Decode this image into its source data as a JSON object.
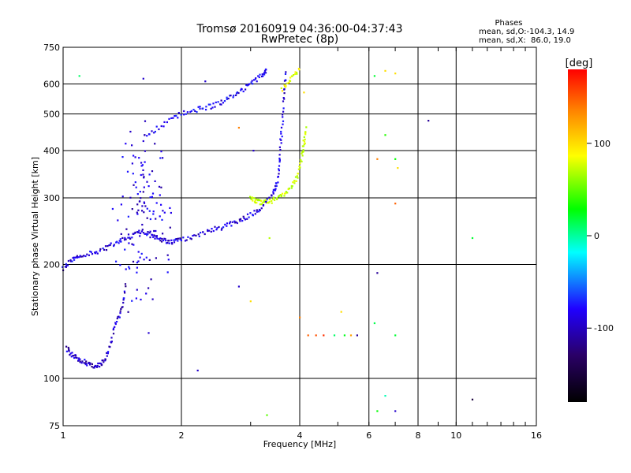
{
  "chart_data": {
    "type": "scatter",
    "title": "Tromsø 20160919 04:36:00-04:37:43",
    "subtitle": "RwPretec (8p)",
    "xlabel": "Frequency [MHz]",
    "ylabel": "Stationary phase Virtual Height [km]",
    "x_scale": "log",
    "y_scale": "log",
    "xlim": [
      1,
      16
    ],
    "ylim": [
      75,
      750
    ],
    "x_ticks": [
      1,
      2,
      4,
      6,
      8,
      10,
      16
    ],
    "x_tick_labels": [
      "1",
      "2",
      "4",
      "6",
      "8",
      "10",
      "16"
    ],
    "y_ticks": [
      75,
      100,
      200,
      300,
      400,
      500,
      600,
      750
    ],
    "y_tick_labels": [
      "75",
      "100",
      "200",
      "300",
      "400",
      "500",
      "600",
      "750"
    ],
    "grid": true,
    "phases_note": {
      "heading": "Phases",
      "line1": "mean, sd,O:-104.3, 14.9",
      "line2": "mean, sd,X:  86.0, 19.0"
    },
    "colorbar": {
      "label": "[deg]",
      "range": [
        -180,
        180
      ],
      "tick_values": [
        100,
        0,
        -100
      ],
      "tick_labels": [
        "100",
        "0",
        "-100"
      ],
      "colors": [
        "#000000",
        "#2a0066",
        "#2000ff",
        "#00ffff",
        "#00ff00",
        "#ffff00",
        "#ff8000",
        "#ff0000"
      ]
    },
    "traces": [
      {
        "kind": "O-mode lower curve",
        "phase": -105,
        "points": [
          [
            1.0,
            195
          ],
          [
            1.05,
            205
          ],
          [
            1.1,
            212
          ],
          [
            1.2,
            215
          ],
          [
            1.3,
            222
          ],
          [
            1.4,
            232
          ],
          [
            1.5,
            240
          ],
          [
            1.6,
            245
          ],
          [
            1.7,
            237
          ],
          [
            1.8,
            232
          ],
          [
            1.9,
            230
          ],
          [
            2.0,
            232
          ],
          [
            2.2,
            240
          ],
          [
            2.4,
            247
          ],
          [
            2.6,
            253
          ],
          [
            2.8,
            262
          ],
          [
            3.0,
            270
          ],
          [
            3.2,
            283
          ],
          [
            3.4,
            305
          ],
          [
            3.5,
            330
          ],
          [
            3.55,
            380
          ],
          [
            3.6,
            450
          ],
          [
            3.65,
            560
          ],
          [
            3.7,
            650
          ]
        ]
      },
      {
        "kind": "X-mode curve",
        "phase": 85,
        "points": [
          [
            3.0,
            300
          ],
          [
            3.1,
            295
          ],
          [
            3.2,
            292
          ],
          [
            3.4,
            295
          ],
          [
            3.6,
            305
          ],
          [
            3.8,
            320
          ],
          [
            3.95,
            345
          ],
          [
            4.05,
            380
          ],
          [
            4.1,
            420
          ],
          [
            4.15,
            460
          ]
        ]
      },
      {
        "kind": "upper O-mode trace",
        "phase": -100,
        "points": [
          [
            1.6,
            430
          ],
          [
            1.8,
            470
          ],
          [
            2.0,
            500
          ],
          [
            2.2,
            515
          ],
          [
            2.4,
            525
          ],
          [
            2.6,
            545
          ],
          [
            2.8,
            570
          ],
          [
            3.0,
            600
          ],
          [
            3.2,
            630
          ],
          [
            3.3,
            650
          ]
        ]
      },
      {
        "kind": "Es-like low trace",
        "phase": -110,
        "points": [
          [
            1.02,
            120
          ],
          [
            1.06,
            115
          ],
          [
            1.1,
            112
          ],
          [
            1.15,
            110
          ],
          [
            1.2,
            108
          ],
          [
            1.25,
            109
          ],
          [
            1.3,
            116
          ],
          [
            1.35,
            135
          ],
          [
            1.4,
            150
          ],
          [
            1.45,
            180
          ]
        ]
      },
      {
        "kind": "spread F cloud",
        "phase": -105,
        "points": [
          [
            1.45,
            180
          ],
          [
            1.5,
            380
          ],
          [
            1.55,
            250
          ],
          [
            1.6,
            300
          ],
          [
            1.65,
            200
          ],
          [
            1.7,
            330
          ],
          [
            1.75,
            270
          ]
        ]
      },
      {
        "kind": "X-mode upper",
        "phase": 95,
        "points": [
          [
            3.6,
            580
          ],
          [
            3.8,
            620
          ],
          [
            4.0,
            660
          ]
        ]
      }
    ],
    "isolated_points": [
      [
        1.1,
        630,
        10
      ],
      [
        1.6,
        620,
        -110
      ],
      [
        2.3,
        610,
        -110
      ],
      [
        2.8,
        460,
        140
      ],
      [
        3.05,
        400,
        -110
      ],
      [
        4.1,
        570,
        110
      ],
      [
        6.2,
        630,
        20
      ],
      [
        6.6,
        650,
        110
      ],
      [
        7.0,
        640,
        110
      ],
      [
        6.3,
        380,
        140
      ],
      [
        7.0,
        380,
        30
      ],
      [
        7.1,
        360,
        110
      ],
      [
        6.6,
        440,
        40
      ],
      [
        7.0,
        290,
        150
      ],
      [
        8.5,
        480,
        -120
      ],
      [
        6.3,
        190,
        -120
      ],
      [
        6.2,
        140,
        15
      ],
      [
        7.0,
        130,
        20
      ],
      [
        4.0,
        145,
        140
      ],
      [
        4.2,
        130,
        150
      ],
      [
        4.4,
        130,
        155
      ],
      [
        4.6,
        130,
        165
      ],
      [
        4.9,
        130,
        10
      ],
      [
        5.2,
        130,
        25
      ],
      [
        5.1,
        150,
        110
      ],
      [
        5.6,
        130,
        -120
      ],
      [
        5.4,
        130,
        130
      ],
      [
        2.2,
        105,
        -110
      ],
      [
        3.0,
        160,
        110
      ],
      [
        3.3,
        80,
        55
      ],
      [
        6.3,
        82,
        30
      ],
      [
        6.6,
        90,
        -5
      ],
      [
        7.0,
        82,
        -110
      ],
      [
        11.0,
        88,
        -150
      ],
      [
        11.0,
        235,
        20
      ],
      [
        3.35,
        235,
        80
      ],
      [
        2.8,
        175,
        -110
      ]
    ]
  }
}
